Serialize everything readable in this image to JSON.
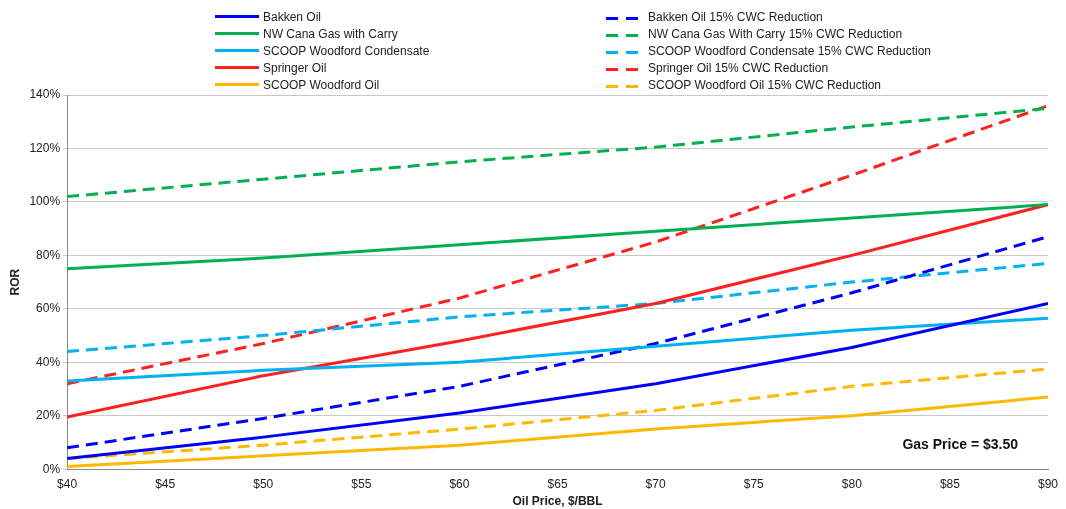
{
  "chart_data": {
    "type": "line",
    "xlabel": "Oil Price, $/BBL",
    "ylabel": "ROR",
    "x": [
      40,
      50,
      60,
      70,
      80,
      90
    ],
    "xlim": [
      40,
      90
    ],
    "xticks": [
      {
        "value": 40,
        "label": "$40"
      },
      {
        "value": 45,
        "label": "$45"
      },
      {
        "value": 50,
        "label": "$50"
      },
      {
        "value": 55,
        "label": "$55"
      },
      {
        "value": 60,
        "label": "$60"
      },
      {
        "value": 65,
        "label": "$65"
      },
      {
        "value": 70,
        "label": "$70"
      },
      {
        "value": 75,
        "label": "$75"
      },
      {
        "value": 80,
        "label": "$80"
      },
      {
        "value": 85,
        "label": "$85"
      },
      {
        "value": 90,
        "label": "$90"
      }
    ],
    "ylim": [
      0,
      140
    ],
    "yticks": [
      {
        "value": 0,
        "label": "0%"
      },
      {
        "value": 20,
        "label": "20%"
      },
      {
        "value": 40,
        "label": "40%"
      },
      {
        "value": 60,
        "label": "60%"
      },
      {
        "value": 80,
        "label": "80%"
      },
      {
        "value": 100,
        "label": "100%"
      },
      {
        "value": 120,
        "label": "120%"
      },
      {
        "value": 140,
        "label": "140%"
      }
    ],
    "grid": "y",
    "legend": "top",
    "marker": "none",
    "annotations": [
      "Gas Price = $3.50"
    ],
    "series": [
      {
        "name": "Bakken Oil",
        "color": "#0000ff",
        "line_style": "solid",
        "values": [
          4,
          12,
          21,
          32,
          45.5,
          62
        ]
      },
      {
        "name": "NW Cana Gas with Carry",
        "color": "#00b050",
        "line_style": "solid",
        "values": [
          75,
          79,
          84,
          89,
          94,
          99
        ]
      },
      {
        "name": "SCOOP Woodford Condensate",
        "color": "#00b0f0",
        "line_style": "solid",
        "values": [
          33,
          37,
          40,
          46,
          52,
          56.5
        ]
      },
      {
        "name": "Springer Oil",
        "color": "#ff2020",
        "line_style": "solid",
        "values": [
          19.5,
          35,
          48,
          62,
          80,
          99
        ]
      },
      {
        "name": "SCOOP Woodford Oil",
        "color": "#ffb800",
        "line_style": "solid",
        "values": [
          1,
          5,
          9,
          15,
          20,
          27
        ]
      },
      {
        "name": "Bakken Oil 15% CWC Reduction",
        "color": "#0000ff",
        "line_style": "dashed",
        "values": [
          8,
          19,
          31,
          47,
          66,
          87
        ]
      },
      {
        "name": "NW Cana Gas With Carry 15% CWC Reduction",
        "color": "#00b050",
        "line_style": "dashed",
        "values": [
          102,
          108.5,
          115,
          120.5,
          128,
          135
        ]
      },
      {
        "name": "SCOOP Woodford Condensate 15% CWC Reduction",
        "color": "#00b0f0",
        "line_style": "dashed",
        "values": [
          44,
          50,
          57,
          62,
          70,
          77
        ]
      },
      {
        "name": "Springer Oil 15% CWC Reduction",
        "color": "#ff2020",
        "line_style": "dashed",
        "values": [
          32,
          47,
          64,
          85,
          110,
          136
        ]
      },
      {
        "name": "SCOOP Woodford Oil 15% CWC Reduction",
        "color": "#ffb800",
        "line_style": "dashed",
        "values": [
          4,
          9,
          15,
          22,
          31,
          37.5
        ]
      }
    ]
  }
}
